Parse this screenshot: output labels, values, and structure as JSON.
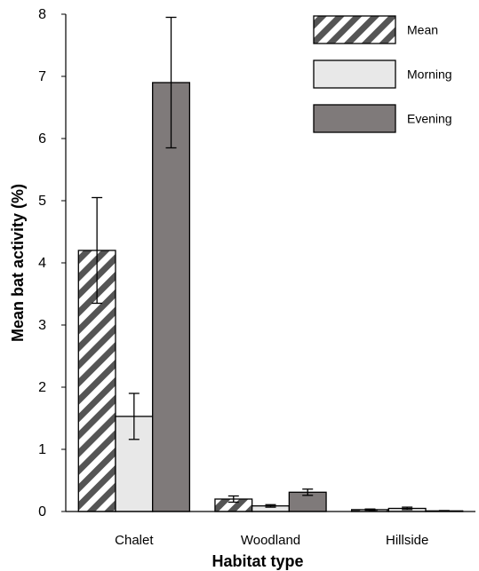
{
  "chart_data": {
    "type": "bar",
    "xlabel": "Habitat type",
    "ylabel": "Mean bat activity (%)",
    "ylim": [
      0,
      8
    ],
    "yticks": [
      "0",
      "1",
      "2",
      "3",
      "4",
      "5",
      "6",
      "7",
      "8"
    ],
    "grid": false,
    "legend_position": "top-right",
    "categories": [
      "Chalet",
      "Woodland",
      "Hillside"
    ],
    "series": [
      {
        "name": "Mean",
        "pattern": "hatched",
        "color": "#555555",
        "values": [
          4.2,
          0.2,
          0.03
        ],
        "error": [
          0.85,
          0.05,
          0.01
        ]
      },
      {
        "name": "Morning",
        "pattern": "solid",
        "color": "#e8e8e8",
        "values": [
          1.53,
          0.09,
          0.05
        ],
        "error": [
          0.37,
          0.02,
          0.02
        ]
      },
      {
        "name": "Evening",
        "pattern": "solid",
        "color": "#7f7a7a",
        "values": [
          6.9,
          0.31,
          0.01
        ],
        "error": [
          1.05,
          0.05,
          0.005
        ]
      }
    ]
  }
}
